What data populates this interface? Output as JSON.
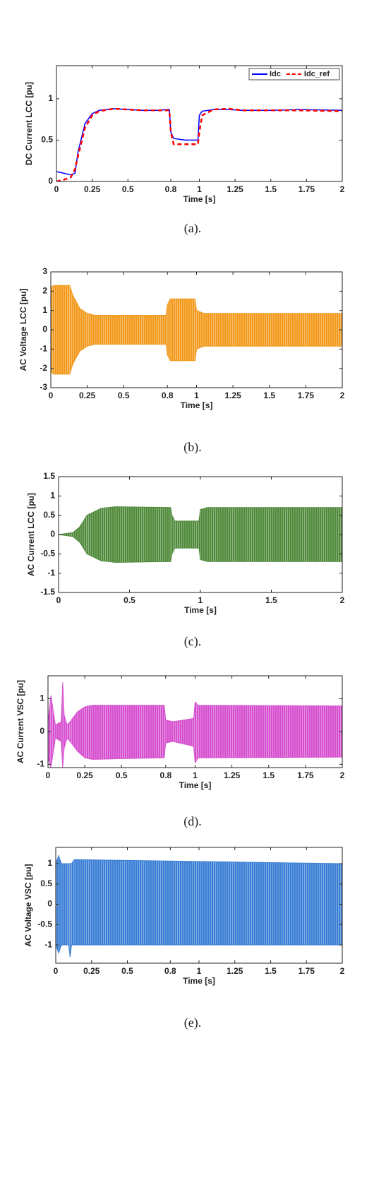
{
  "chart_data": [
    {
      "type": "line",
      "caption": "(a).",
      "xlabel": "Time [s]",
      "ylabel": "DC Current LCC [pu]",
      "x": [
        0,
        0.05,
        0.1,
        0.13,
        0.15,
        0.2,
        0.25,
        0.3,
        0.4,
        0.5,
        0.6,
        0.7,
        0.79,
        0.8,
        0.82,
        0.9,
        0.99,
        1,
        1.02,
        1.1,
        1.2,
        1.3,
        1.5,
        1.7,
        2
      ],
      "series": [
        {
          "name": "Idc",
          "color": "#0000ff",
          "line_style": "solid",
          "values": [
            0.12,
            0.1,
            0.08,
            0.1,
            0.35,
            0.7,
            0.82,
            0.86,
            0.88,
            0.87,
            0.86,
            0.86,
            0.87,
            0.6,
            0.52,
            0.5,
            0.5,
            0.8,
            0.85,
            0.87,
            0.87,
            0.86,
            0.86,
            0.87,
            0.86
          ]
        },
        {
          "name": "Idc_ref",
          "color": "#ff0000",
          "line_style": "dashed",
          "values": [
            0,
            0.02,
            0.05,
            0.15,
            0.3,
            0.65,
            0.8,
            0.85,
            0.88,
            0.87,
            0.86,
            0.86,
            0.86,
            0.6,
            0.45,
            0.45,
            0.45,
            0.6,
            0.8,
            0.87,
            0.88,
            0.86,
            0.86,
            0.86,
            0.85
          ]
        }
      ],
      "xlim": [
        0,
        2
      ],
      "xticks": [
        0,
        0.25,
        0.5,
        0.8,
        1,
        1.25,
        1.5,
        1.75,
        2
      ],
      "ylim": [
        0,
        1.4
      ],
      "yticks": [
        0,
        0.5,
        1
      ],
      "legend": "upper right"
    },
    {
      "type": "band",
      "caption": "(b).",
      "xlabel": "Time [s]",
      "ylabel": "AC Voltage LCC [pu]",
      "x": [
        0,
        0.02,
        0.13,
        0.15,
        0.2,
        0.25,
        0.3,
        0.79,
        0.8,
        0.82,
        0.99,
        1,
        1.05,
        2
      ],
      "series": [
        {
          "color": "#f39a1c",
          "upper": [
            2.2,
            2.3,
            2.3,
            1.8,
            1.1,
            0.85,
            0.75,
            0.75,
            1.3,
            1.6,
            1.6,
            1.0,
            0.85,
            0.85
          ],
          "lower": [
            -2.2,
            -2.3,
            -2.3,
            -1.8,
            -1.1,
            -0.85,
            -0.75,
            -0.75,
            -1.3,
            -1.6,
            -1.6,
            -1.0,
            -0.85,
            -0.85
          ]
        }
      ],
      "xlim": [
        0,
        2
      ],
      "xticks": [
        0,
        0.25,
        0.5,
        0.8,
        1,
        1.25,
        1.5,
        1.75,
        2
      ],
      "ylim": [
        -3,
        3
      ],
      "yticks": [
        -3,
        -2,
        -1,
        0,
        1,
        2,
        3
      ]
    },
    {
      "type": "band",
      "caption": "(c).",
      "xlabel": "Time [s]",
      "ylabel": "AC Current LCC [pu]",
      "x": [
        0,
        0.1,
        0.15,
        0.2,
        0.3,
        0.4,
        0.79,
        0.8,
        0.82,
        0.99,
        1,
        1.05,
        2
      ],
      "series": [
        {
          "color": "#4f8a3a",
          "upper": [
            0,
            0.05,
            0.2,
            0.5,
            0.68,
            0.72,
            0.7,
            0.5,
            0.35,
            0.35,
            0.65,
            0.7,
            0.7
          ],
          "lower": [
            0,
            -0.05,
            -0.2,
            -0.5,
            -0.68,
            -0.72,
            -0.7,
            -0.5,
            -0.35,
            -0.35,
            -0.65,
            -0.7,
            -0.7
          ]
        }
      ],
      "xlim": [
        0,
        2
      ],
      "xticks": [
        0,
        0.5,
        1,
        1.5,
        2
      ],
      "ylim": [
        -1.5,
        1.5
      ],
      "yticks": [
        -1.5,
        -1,
        -0.5,
        0,
        0.5,
        1,
        1.5
      ]
    },
    {
      "type": "band",
      "caption": "(d).",
      "xlabel": "Time [s]",
      "ylabel": "AC Current VSC [pu]",
      "x": [
        0,
        0.02,
        0.05,
        0.09,
        0.1,
        0.11,
        0.13,
        0.15,
        0.2,
        0.25,
        0.3,
        0.79,
        0.8,
        0.85,
        0.99,
        1,
        1.02,
        2
      ],
      "series": [
        {
          "color": "#d64fcf",
          "upper": [
            0.3,
            1.1,
            0.2,
            0.3,
            1.5,
            0.5,
            0.2,
            0.3,
            0.6,
            0.75,
            0.8,
            0.8,
            0.35,
            0.3,
            0.4,
            0.9,
            0.8,
            0.78
          ],
          "lower": [
            -0.8,
            -1.1,
            -0.2,
            -0.3,
            -1.1,
            -0.5,
            -0.2,
            -0.3,
            -0.6,
            -0.8,
            -0.85,
            -0.8,
            -0.35,
            -0.3,
            -0.45,
            -0.95,
            -0.8,
            -0.78
          ]
        }
      ],
      "xlim": [
        0,
        2
      ],
      "xticks": [
        0,
        0.25,
        0.5,
        0.8,
        1,
        1.25,
        1.5,
        1.75,
        2
      ],
      "ylim": [
        -1.1,
        1.7
      ],
      "yticks": [
        -1,
        0,
        1
      ]
    },
    {
      "type": "band",
      "caption": "(e).",
      "xlabel": "Time [s]",
      "ylabel": "AC Voltage VSC [pu]",
      "x": [
        0,
        0.02,
        0.04,
        0.09,
        0.1,
        0.11,
        0.13,
        2
      ],
      "series": [
        {
          "color": "#3a7fd5",
          "upper": [
            1,
            1.2,
            1,
            1,
            1,
            1,
            1.1,
            1
          ],
          "lower": [
            -1,
            -1.2,
            -1,
            -1,
            -1.3,
            -1,
            -1,
            -1
          ]
        }
      ],
      "xlim": [
        0,
        2
      ],
      "xticks": [
        0,
        0.25,
        0.5,
        0.8,
        1,
        1.25,
        1.5,
        1.75,
        2
      ],
      "ylim": [
        -1.45,
        1.4
      ],
      "yticks": [
        -1,
        -0.5,
        0,
        0.5,
        1
      ]
    }
  ]
}
